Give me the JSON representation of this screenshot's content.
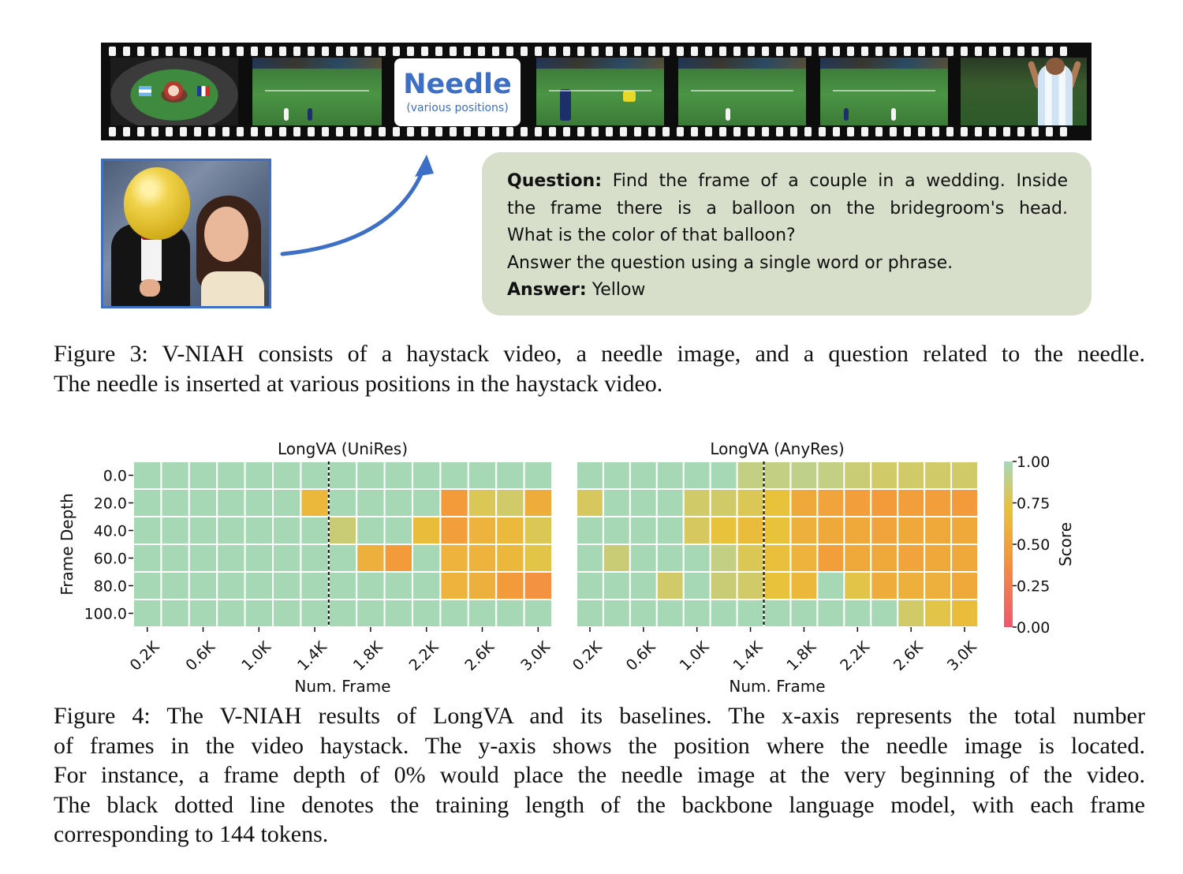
{
  "figure3": {
    "needle_title": "Needle",
    "needle_subtitle": "(various positions)",
    "question_label": "Question:",
    "question_line1": "Find the frame of a couple in a wedding. Inside",
    "question_line2": "the frame there is a balloon on the bridegroom's head.",
    "question_line3": "What is the color of that balloon?",
    "instruction": "Answer the question using a single word or phrase.",
    "answer_label": "Answer:",
    "answer_text": "Yellow",
    "caption_line1": "Figure 3: V-NIAH consists of a haystack video, a needle image, and a question related to the needle.",
    "caption_line2": "The needle is inserted at various positions in the haystack video."
  },
  "figure4": {
    "caption_line1": "Figure 4: The V-NIAH results of LongVA and its baselines. The x-axis represents the total number",
    "caption_line2": "of frames in the video haystack. The y-axis shows the position where the needle image is located.",
    "caption_line3": "For instance, a frame depth of 0% would place the needle image at the very beginning of the video.",
    "caption_line4": "The black dotted line denotes the training length of the backbone language model, with each frame",
    "caption_line5": "corresponding to 144 tokens."
  },
  "colors": {
    "accent_blue": "#3d6fc6",
    "qa_background": "#d7dec9",
    "cmap": [
      "#f2566e",
      "#f39a3b",
      "#e9c23c",
      "#a6d8b6"
    ]
  },
  "chart_data": [
    {
      "type": "heatmap",
      "title": "LongVA (UniRes)",
      "xlabel": "Num. Frame",
      "ylabel": "Frame Depth",
      "x_tick_labels": [
        "0.2K",
        "0.6K",
        "1.0K",
        "1.4K",
        "1.8K",
        "2.2K",
        "2.6K",
        "3.0K"
      ],
      "y": [
        "0.0",
        "20.0",
        "40.0",
        "60.0",
        "80.0",
        "100.0"
      ],
      "x": [
        200,
        400,
        600,
        800,
        1000,
        1200,
        1400,
        1600,
        1800,
        2000,
        2200,
        2400,
        2600,
        2800,
        3000
      ],
      "training_length_marker_x": 1500,
      "values": [
        [
          1,
          1,
          1,
          1,
          1,
          1,
          1,
          1,
          1,
          1,
          1,
          1,
          1,
          1,
          1
        ],
        [
          1,
          1,
          1,
          1,
          1,
          1,
          0.65,
          1,
          1,
          1,
          1,
          0.45,
          0.78,
          0.82,
          0.58
        ],
        [
          1,
          1,
          1,
          1,
          1,
          1,
          1,
          0.85,
          1,
          1,
          0.68,
          0.48,
          0.62,
          0.66,
          0.78
        ],
        [
          1,
          1,
          1,
          1,
          1,
          1,
          1,
          1,
          0.6,
          0.45,
          1,
          0.62,
          0.62,
          0.65,
          0.75
        ],
        [
          1,
          1,
          1,
          1,
          1,
          1,
          1,
          1,
          1,
          1,
          1,
          0.62,
          0.6,
          0.45,
          0.4
        ],
        [
          1,
          1,
          1,
          1,
          1,
          1,
          1,
          1,
          1,
          1,
          1,
          1,
          1,
          1,
          1
        ]
      ]
    },
    {
      "type": "heatmap",
      "title": "LongVA (AnyRes)",
      "xlabel": "Num. Frame",
      "ylabel": "",
      "x_tick_labels": [
        "0.2K",
        "0.6K",
        "1.0K",
        "1.4K",
        "1.8K",
        "2.2K",
        "2.6K",
        "3.0K"
      ],
      "y": [
        "0.0",
        "20.0",
        "40.0",
        "60.0",
        "80.0",
        "100.0"
      ],
      "x": [
        200,
        400,
        600,
        800,
        1000,
        1200,
        1400,
        1600,
        1800,
        2000,
        2200,
        2400,
        2600,
        2800,
        3000
      ],
      "training_length_marker_x": 1500,
      "values": [
        [
          1,
          1,
          1,
          1,
          1,
          1,
          0.88,
          0.88,
          0.9,
          0.88,
          0.85,
          0.82,
          0.82,
          0.82,
          0.82
        ],
        [
          0.8,
          1,
          1,
          1,
          0.82,
          0.82,
          0.78,
          0.72,
          0.55,
          0.52,
          0.48,
          0.45,
          0.48,
          0.48,
          0.45
        ],
        [
          1,
          1,
          1,
          1,
          0.8,
          0.72,
          0.68,
          0.72,
          0.6,
          0.55,
          0.55,
          0.52,
          0.55,
          0.55,
          0.55
        ],
        [
          1,
          0.85,
          1,
          1,
          1,
          0.88,
          0.78,
          0.7,
          0.62,
          0.48,
          0.55,
          0.55,
          0.52,
          0.55,
          0.55
        ],
        [
          1,
          1,
          1,
          0.82,
          1,
          0.85,
          0.82,
          0.72,
          0.65,
          1,
          0.75,
          0.58,
          0.6,
          0.6,
          0.55
        ],
        [
          1,
          1,
          1,
          1,
          1,
          1,
          1,
          1,
          1,
          1,
          1,
          1,
          0.82,
          0.75,
          0.68
        ]
      ]
    }
  ],
  "colorbar": {
    "label": "Score",
    "ticks": [
      "1.00",
      "0.75",
      "0.50",
      "0.25",
      "0.00"
    ]
  }
}
